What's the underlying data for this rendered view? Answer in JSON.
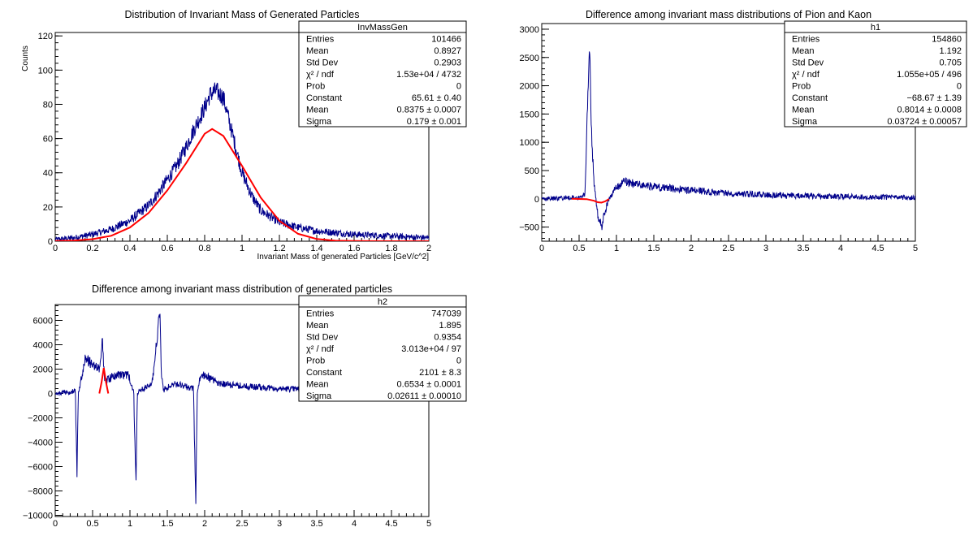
{
  "chart_data": [
    {
      "id": "p1",
      "type": "histogram",
      "title": "Distribution of Invariant Mass of Generated Particles",
      "xlabel": "Invariant Mass of generated Particles [GeV/c^2]",
      "ylabel": "Counts",
      "xlim": [
        0,
        2
      ],
      "ylim": [
        0,
        122
      ],
      "xticks": [
        "0",
        "0.2",
        "0.4",
        "0.6",
        "0.8",
        "1",
        "1.2",
        "1.4",
        "1.6",
        "1.8",
        "2"
      ],
      "xtick_values": [
        0,
        0.2,
        0.4,
        0.6,
        0.8,
        1.0,
        1.2,
        1.4,
        1.6,
        1.8,
        2.0
      ],
      "yticks": [
        "0",
        "20",
        "40",
        "60",
        "80",
        "100",
        "120"
      ],
      "ytick_values": [
        0,
        20,
        40,
        60,
        80,
        100,
        120
      ],
      "series": [
        {
          "kind": "histogram",
          "color": "#00008b",
          "x": [
            0.0,
            0.1,
            0.2,
            0.3,
            0.4,
            0.5,
            0.55,
            0.6,
            0.65,
            0.7,
            0.75,
            0.8,
            0.83,
            0.86,
            0.9,
            0.95,
            1.0,
            1.05,
            1.1,
            1.2,
            1.3,
            1.4,
            1.6,
            1.8,
            2.0
          ],
          "y": [
            1,
            2,
            4,
            7,
            12,
            21,
            28,
            36,
            44,
            55,
            67,
            78,
            86,
            88,
            84,
            62,
            40,
            27,
            18,
            11,
            8,
            6,
            4,
            3,
            2
          ]
        },
        {
          "kind": "fit",
          "color": "#ff0000",
          "x": [
            0.0,
            0.1,
            0.2,
            0.3,
            0.4,
            0.5,
            0.6,
            0.7,
            0.8,
            0.84,
            0.9,
            1.0,
            1.1,
            1.2,
            1.3,
            1.4,
            1.5,
            1.6,
            1.8,
            2.0
          ],
          "y": [
            0.1,
            0.4,
            1.2,
            3.2,
            8.0,
            16.5,
            29.7,
            45.5,
            62.8,
            65.6,
            61.5,
            44.0,
            25.5,
            11.9,
            4.3,
            1.3,
            0.3,
            0.1,
            0,
            0
          ]
        }
      ],
      "stats": {
        "name": "InvMassGen",
        "rows": [
          [
            "Entries",
            "101466"
          ],
          [
            "Mean",
            "0.8927"
          ],
          [
            "Std Dev",
            "0.2903"
          ],
          [
            "χ² / ndf",
            "1.53e+04 / 4732"
          ],
          [
            "Prob",
            "0"
          ],
          [
            "Constant",
            "65.61 ± 0.40"
          ],
          [
            "Mean",
            "0.8375 ± 0.0007"
          ],
          [
            "Sigma",
            "0.179 ± 0.001"
          ]
        ]
      }
    },
    {
      "id": "p2",
      "type": "histogram",
      "title": "Difference among invariant mass distributions of Pion and Kaon",
      "xlabel": "",
      "ylabel": "",
      "xlim": [
        0,
        5
      ],
      "ylim": [
        -750,
        3100
      ],
      "xticks": [
        "0",
        "0.5",
        "1",
        "1.5",
        "2",
        "2.5",
        "3",
        "3.5",
        "4",
        "4.5",
        "5"
      ],
      "xtick_values": [
        0,
        0.5,
        1.0,
        1.5,
        2.0,
        2.5,
        3.0,
        3.5,
        4.0,
        4.5,
        5.0
      ],
      "yticks": [
        "−500",
        "0",
        "500",
        "1000",
        "1500",
        "2000",
        "2500",
        "3000"
      ],
      "ytick_values": [
        -500,
        0,
        500,
        1000,
        1500,
        2000,
        2500,
        3000
      ],
      "series": [
        {
          "kind": "histogram",
          "color": "#00008b",
          "x": [
            0.0,
            0.3,
            0.5,
            0.58,
            0.62,
            0.64,
            0.66,
            0.7,
            0.75,
            0.8,
            0.85,
            0.9,
            1.0,
            1.1,
            1.3,
            1.6,
            2.0,
            2.5,
            3.0,
            3.5,
            4.0,
            4.5,
            5.0
          ],
          "y": [
            0,
            10,
            30,
            100,
            2000,
            2900,
            1300,
            300,
            -300,
            -500,
            -200,
            0,
            200,
            300,
            250,
            200,
            150,
            100,
            70,
            50,
            40,
            30,
            20
          ]
        },
        {
          "kind": "fit",
          "color": "#ff0000",
          "x": [
            0.4,
            0.6,
            0.7,
            0.75,
            0.8,
            0.85,
            0.9
          ],
          "y": [
            0,
            -6,
            -35,
            -60,
            -68,
            -45,
            -5
          ]
        }
      ],
      "stats": {
        "name": "h1",
        "rows": [
          [
            "Entries",
            "154860"
          ],
          [
            "Mean",
            "1.192"
          ],
          [
            "Std Dev",
            "0.705"
          ],
          [
            "χ² / ndf",
            "1.055e+05 / 496"
          ],
          [
            "Prob",
            "0"
          ],
          [
            "Constant",
            "−68.67 ± 1.39"
          ],
          [
            "Mean",
            "0.8014 ± 0.0008"
          ],
          [
            "Sigma",
            "0.03724 ± 0.00057"
          ]
        ]
      }
    },
    {
      "id": "p3",
      "type": "histogram",
      "title": "Difference among invariant mass distribution of generated particles",
      "xlabel": "",
      "ylabel": "",
      "xlim": [
        0,
        5
      ],
      "ylim": [
        -10100,
        7300
      ],
      "xticks": [
        "0",
        "0.5",
        "1",
        "1.5",
        "2",
        "2.5",
        "3",
        "3.5",
        "4",
        "4.5",
        "5"
      ],
      "xtick_values": [
        0,
        0.5,
        1.0,
        1.5,
        2.0,
        2.5,
        3.0,
        3.5,
        4.0,
        4.5,
        5.0
      ],
      "yticks": [
        "−10000",
        "−8000",
        "−6000",
        "−4000",
        "−2000",
        "0",
        "2000",
        "4000",
        "6000"
      ],
      "ytick_values": [
        -10000,
        -8000,
        -6000,
        -4000,
        -2000,
        0,
        2000,
        4000,
        6000
      ],
      "series": [
        {
          "kind": "histogram",
          "color": "#00008b",
          "x": [
            0.0,
            0.2,
            0.27,
            0.29,
            0.31,
            0.4,
            0.6,
            0.63,
            0.66,
            0.8,
            0.98,
            1.05,
            1.08,
            1.1,
            1.3,
            1.4,
            1.42,
            1.45,
            1.6,
            1.85,
            1.88,
            1.9,
            1.95,
            2.2,
            2.5,
            3.0,
            3.5,
            3.65
          ],
          "y": [
            0,
            100,
            200,
            -6900,
            0,
            2800,
            2000,
            4700,
            1000,
            1500,
            1500,
            200,
            -7400,
            0,
            1000,
            6700,
            1500,
            300,
            800,
            400,
            -9300,
            0,
            1600,
            800,
            600,
            400,
            300,
            300
          ]
        },
        {
          "kind": "fit",
          "color": "#ff0000",
          "x": [
            0.59,
            0.62,
            0.65,
            0.68,
            0.71
          ],
          "y": [
            0,
            900,
            2100,
            900,
            0
          ]
        }
      ],
      "stats": {
        "name": "h2",
        "rows": [
          [
            "Entries",
            "747039"
          ],
          [
            "Mean",
            "1.895"
          ],
          [
            "Std Dev",
            "0.9354"
          ],
          [
            "χ² / ndf",
            "3.013e+04 / 97"
          ],
          [
            "Prob",
            "0"
          ],
          [
            "Constant",
            "2101 ± 8.3"
          ],
          [
            "Mean",
            "0.6534 ± 0.0001"
          ],
          [
            "Sigma",
            "0.02611 ± 0.00010"
          ]
        ]
      }
    }
  ]
}
